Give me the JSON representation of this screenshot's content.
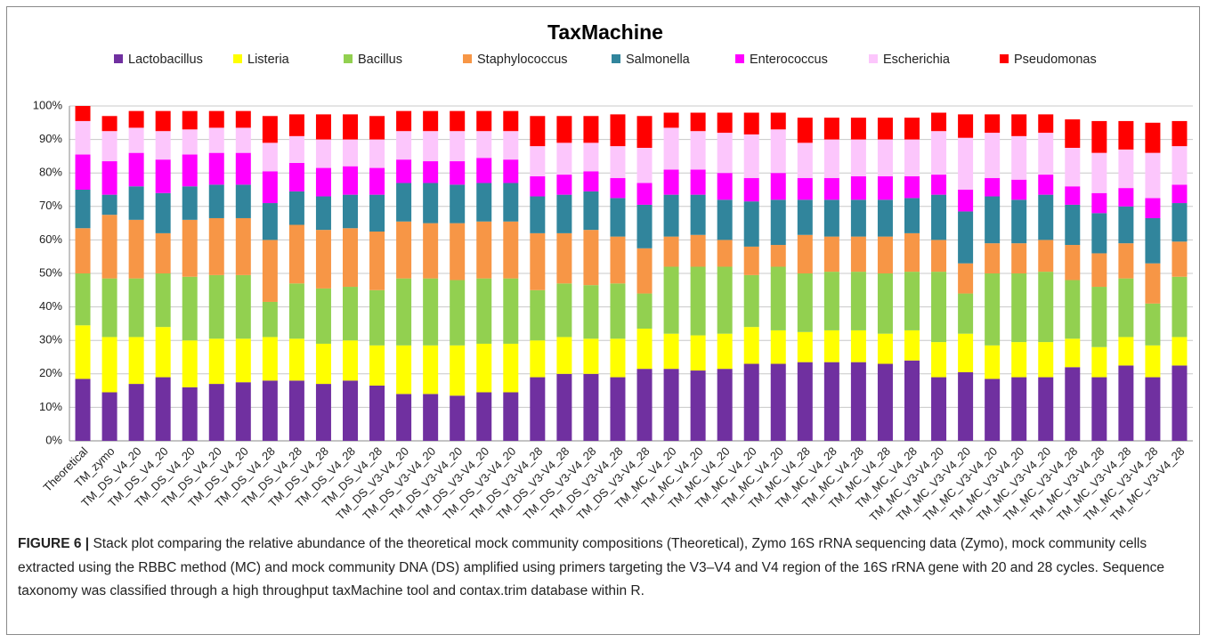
{
  "chart_data": {
    "type": "stacked_bar",
    "title": "TaxMachine",
    "categories": [
      "Theoretical",
      "TM_zymo",
      "TM_DS_V4_20",
      "TM_DS_V4_20",
      "TM_DS_V4_20",
      "TM_DS_V4_20",
      "TM_DS_V4_20",
      "TM_DS_V4_28",
      "TM_DS_V4_28",
      "TM_DS_V4_28",
      "TM_DS_V4_28",
      "TM_DS_V4_28",
      "TM_DS_V3-V4_20",
      "TM_DS_V3-V4_20",
      "TM_DS_V3-V4_20",
      "TM_DS_V3-V4_20",
      "TM_DS_V3-V4_20",
      "TM_DS_V3-V4_28",
      "TM_DS_V3-V4_28",
      "TM_DS_V3-V4_28",
      "TM_DS_V3-V4_28",
      "TM_DS_V3-V4_28",
      "TM_MC_V4_20",
      "TM_MC_V4_20",
      "TM_MC_V4_20",
      "TM_MC_V4_20",
      "TM_MC_V4_20",
      "TM_MC_V4_28",
      "TM_MC_V4_28",
      "TM_MC_V4_28",
      "TM_MC_V4_28",
      "TM_MC_V4_28",
      "TM_MC_V3-V4_20",
      "TM_MC_V3-V4_20",
      "TM_MC_V3-V4_20",
      "TM_MC_V3-V4_20",
      "TM_MC_V3-V4_20",
      "TM_MC_V3-V4_28",
      "TM_MC_V3-V4_28",
      "TM_MC_V3-V4_28",
      "TM_MC_V3-V4_28",
      "TM_MC_V3-V4_28"
    ],
    "series": [
      {
        "name": "Lactobacillus",
        "color": "#7030a0",
        "values": [
          18.5,
          14.5,
          17,
          19,
          16,
          17,
          17.5,
          18,
          18,
          17,
          18,
          16.5,
          14,
          14,
          13.5,
          14.5,
          14.5,
          19,
          20,
          20,
          19,
          21.5,
          21.5,
          21,
          21.5,
          23,
          23,
          23.5,
          23.5,
          23.5,
          23,
          24,
          19,
          20.5,
          18.5,
          19,
          19,
          22,
          19,
          22.5,
          19,
          22.5
        ]
      },
      {
        "name": "Listeria",
        "color": "#ffff00",
        "values": [
          16,
          16.5,
          14,
          15,
          14,
          13.5,
          13,
          13,
          12.5,
          12,
          12,
          12,
          14.5,
          14.5,
          15,
          14.5,
          14.5,
          11,
          11,
          10.5,
          11.5,
          12,
          10.5,
          10.5,
          10.5,
          11,
          10,
          9,
          9.5,
          9.5,
          9,
          9,
          10.5,
          11.5,
          10,
          10.5,
          10.5,
          8.5,
          9,
          8.5,
          9.5,
          8.5
        ]
      },
      {
        "name": "Bacillus",
        "color": "#92d050",
        "values": [
          15.5,
          17.5,
          17.5,
          16,
          19,
          19,
          19,
          10.5,
          16.5,
          16.5,
          16,
          16.5,
          20,
          20,
          19.5,
          19.5,
          19.5,
          15,
          16,
          16,
          16.5,
          10.5,
          20,
          20.5,
          20,
          15.5,
          19,
          17.5,
          17.5,
          17.5,
          18,
          17.5,
          21,
          12,
          21.5,
          20.5,
          21,
          17.5,
          18,
          17.5,
          12.5,
          18
        ]
      },
      {
        "name": "Staphylococcus",
        "color": "#f79646",
        "values": [
          13.5,
          19,
          17.5,
          12,
          17,
          17,
          17,
          18.5,
          17.5,
          17.5,
          17.5,
          17.5,
          17,
          16.5,
          17,
          17,
          17,
          17,
          15,
          16.5,
          14,
          13.5,
          9,
          9.5,
          8,
          8.5,
          6.5,
          11.5,
          10.5,
          10.5,
          11,
          11.5,
          9.5,
          9,
          9,
          9,
          9.5,
          10.5,
          10,
          10.5,
          12,
          10.5
        ]
      },
      {
        "name": "Salmonella",
        "color": "#31859c",
        "values": [
          11.5,
          6,
          10,
          12,
          10,
          10,
          10,
          11,
          10,
          10,
          10,
          11,
          11.5,
          12,
          11.5,
          11.5,
          11.5,
          11,
          11.5,
          11.5,
          11.5,
          13,
          12.5,
          12,
          12,
          13.5,
          13.5,
          10.5,
          11,
          11,
          11,
          10.5,
          13.5,
          15.5,
          14,
          13,
          13.5,
          12,
          12,
          11,
          13.5,
          11.5
        ]
      },
      {
        "name": "Enterococcus",
        "color": "#ff00ff",
        "values": [
          10.5,
          10,
          10,
          10,
          9.5,
          9.5,
          9.5,
          9.5,
          8.5,
          8.5,
          8.5,
          8,
          7,
          6.5,
          7,
          7.5,
          7,
          6,
          6,
          6,
          6,
          6.5,
          7.5,
          7.5,
          8,
          7,
          8,
          6.5,
          6.5,
          7,
          7,
          6.5,
          6,
          6.5,
          5.5,
          6,
          6,
          5.5,
          6,
          5.5,
          6,
          5.5
        ]
      },
      {
        "name": "Escherichia",
        "color": "#fcc6fc",
        "values": [
          10,
          9,
          7.5,
          8.5,
          7.5,
          7.5,
          7.5,
          8.5,
          8,
          8.5,
          8,
          8.5,
          8.5,
          9,
          9,
          8,
          8.5,
          9,
          9.5,
          8.5,
          9.5,
          10.5,
          12.5,
          11.5,
          12,
          13,
          13,
          10.5,
          11.5,
          11,
          11,
          11,
          13,
          15.5,
          13.5,
          13,
          12.5,
          11.5,
          12,
          11.5,
          13.5,
          11.5
        ]
      },
      {
        "name": "Pseudomonas",
        "color": "#ff0000",
        "values": [
          4.5,
          4.5,
          5,
          6,
          5.5,
          5,
          5,
          8,
          6.5,
          7.5,
          7.5,
          7,
          6,
          6,
          6,
          6,
          6,
          9,
          8,
          8,
          9.5,
          9.5,
          4.5,
          5.5,
          6,
          6.5,
          5,
          7.5,
          6.5,
          6.5,
          6.5,
          6.5,
          5.5,
          7,
          5.5,
          6.5,
          5.5,
          8.5,
          9.5,
          8.5,
          9,
          7.5
        ]
      }
    ],
    "ylim": [
      0,
      100
    ],
    "yticks": [
      {
        "value": 0,
        "label": "0%"
      },
      {
        "value": 10,
        "label": "10%"
      },
      {
        "value": 20,
        "label": "20%"
      },
      {
        "value": 30,
        "label": "30%"
      },
      {
        "value": 40,
        "label": "40%"
      },
      {
        "value": 50,
        "label": "50%"
      },
      {
        "value": 60,
        "label": "60%"
      },
      {
        "value": 70,
        "label": "70%"
      },
      {
        "value": 80,
        "label": "80%"
      },
      {
        "value": 90,
        "label": "90%"
      },
      {
        "value": 100,
        "label": "100%"
      }
    ],
    "grid": true,
    "legend": "top"
  },
  "caption": {
    "label": "FIGURE 6 |",
    "text": "Stack plot comparing the relative abundance of the theoretical mock community compositions (Theoretical), Zymo 16S rRNA sequencing data (Zymo), mock community cells extracted using the RBBC method (MC) and mock community DNA (DS) amplified using primers targeting the V3–V4 and V4 region of the 16S rRNA gene with 20 and 28 cycles. Sequence taxonomy was classified through a high throughput taxMachine tool and contax.trim database within R."
  }
}
